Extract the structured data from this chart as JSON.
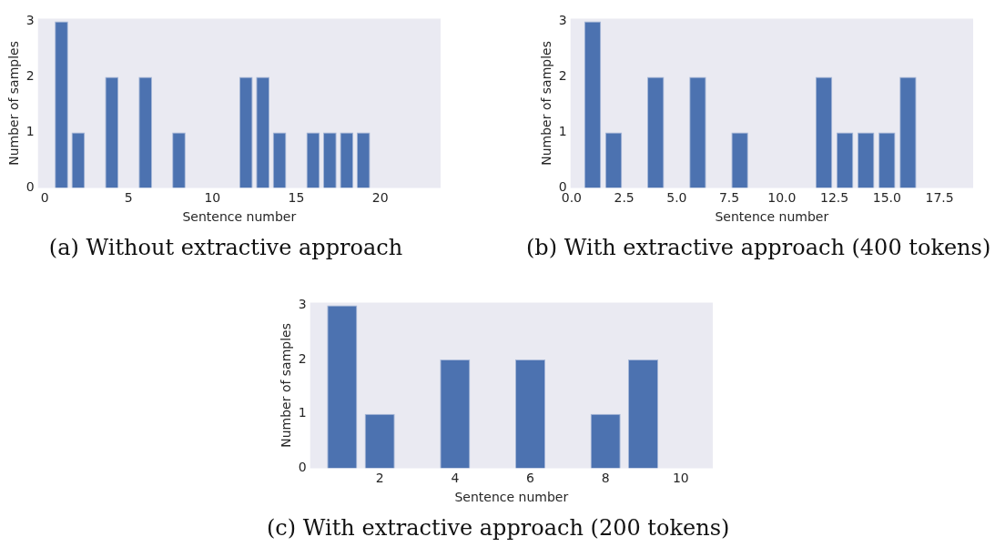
{
  "chart_data": [
    {
      "type": "bar",
      "xlabel": "Sentence number",
      "ylabel": "Number of samples",
      "annotations": [
        "(a) Without extractive approach"
      ],
      "x": [
        1,
        2,
        4,
        6,
        8,
        12,
        13,
        14,
        16,
        17,
        18,
        19
      ],
      "values": [
        3,
        1,
        2,
        2,
        1,
        2,
        2,
        1,
        1,
        1,
        1,
        1
      ],
      "color": "#4c72b0",
      "xlim": [
        -0.4,
        23.6
      ],
      "xticks": [
        0,
        5,
        10,
        15,
        20
      ],
      "ylim": [
        0,
        3.05
      ],
      "yticks": [
        0,
        1,
        2,
        3
      ],
      "grid": false
    },
    {
      "type": "bar",
      "xlabel": "Sentence number",
      "ylabel": "Number of samples",
      "annotations": [
        "(b) With extractive approach (400 tokens)"
      ],
      "x": [
        1,
        2,
        4,
        6,
        8,
        12,
        13,
        14,
        15,
        16
      ],
      "values": [
        3,
        1,
        2,
        2,
        1,
        2,
        1,
        1,
        1,
        2
      ],
      "color": "#4c72b0",
      "xlim": [
        -0.05,
        19.1
      ],
      "xticks": [
        {
          "value": 0,
          "label": "0.0"
        },
        2.5,
        {
          "value": 5,
          "label": "5.0"
        },
        7.5,
        {
          "value": 10,
          "label": "10.0"
        },
        12.5,
        {
          "value": 15,
          "label": "15.0"
        },
        17.5
      ],
      "ylim": [
        0,
        3.05
      ],
      "yticks": [
        0,
        1,
        2,
        3
      ],
      "grid": false
    },
    {
      "type": "bar",
      "xlabel": "Sentence number",
      "ylabel": "Number of samples",
      "annotations": [
        "(c) With extractive approach (200 tokens)"
      ],
      "x": [
        1,
        2,
        4,
        6,
        8,
        9
      ],
      "values": [
        3,
        1,
        2,
        2,
        1,
        2
      ],
      "color": "#4c72b0",
      "xlim": [
        0.15,
        10.85
      ],
      "xticks": [
        2,
        4,
        6,
        8,
        10
      ],
      "ylim": [
        0,
        3.05
      ],
      "yticks": [
        0,
        1,
        2,
        3
      ],
      "grid": false
    }
  ]
}
